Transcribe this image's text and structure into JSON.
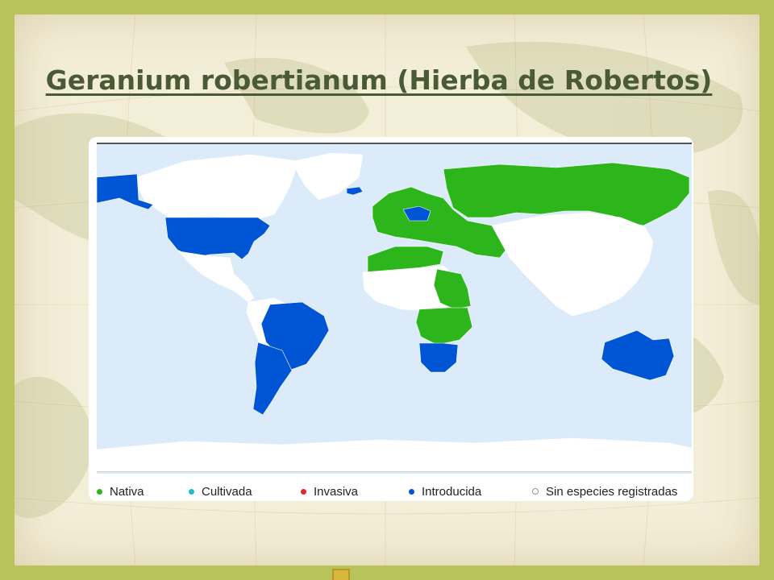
{
  "slide": {
    "title": "Geranium robertianum (Hierba de Robertos)"
  },
  "map": {
    "colors": {
      "ocean": "#dcebfa",
      "land": "#ffffff",
      "native": "#2db51c",
      "introduced": "#0055d4",
      "cultivated": "#1fbcc2",
      "invasive": "#e8232a"
    },
    "regions": [
      {
        "name": "north-america-other",
        "status": "none"
      },
      {
        "name": "alaska",
        "status": "introducida"
      },
      {
        "name": "usa",
        "status": "introducida"
      },
      {
        "name": "mexico-central-america",
        "status": "none"
      },
      {
        "name": "greenland",
        "status": "none"
      },
      {
        "name": "iceland",
        "status": "introducida"
      },
      {
        "name": "south-america-north",
        "status": "none"
      },
      {
        "name": "brazil",
        "status": "introducida"
      },
      {
        "name": "southern-cone",
        "status": "introducida"
      },
      {
        "name": "europe",
        "status": "nativa"
      },
      {
        "name": "poland",
        "status": "introducida"
      },
      {
        "name": "russia",
        "status": "nativa"
      },
      {
        "name": "north-africa",
        "status": "nativa"
      },
      {
        "name": "sahara",
        "status": "none"
      },
      {
        "name": "sudan-ethiopia",
        "status": "nativa"
      },
      {
        "name": "central-africa",
        "status": "nativa"
      },
      {
        "name": "southern-africa",
        "status": "introducida"
      },
      {
        "name": "asia",
        "status": "none"
      },
      {
        "name": "australia",
        "status": "introducida"
      },
      {
        "name": "antarctica",
        "status": "none"
      }
    ]
  },
  "legend": {
    "items": [
      {
        "label": "Nativa",
        "color": "#2db51c",
        "hollow": false
      },
      {
        "label": "Cultivada",
        "color": "#1fbcc2",
        "hollow": false
      },
      {
        "label": "Invasiva",
        "color": "#e8232a",
        "hollow": false
      },
      {
        "label": "Introducida",
        "color": "#0055d4",
        "hollow": false
      },
      {
        "label": "Sin especies registradas",
        "color": "#ffffff",
        "hollow": true
      }
    ]
  }
}
